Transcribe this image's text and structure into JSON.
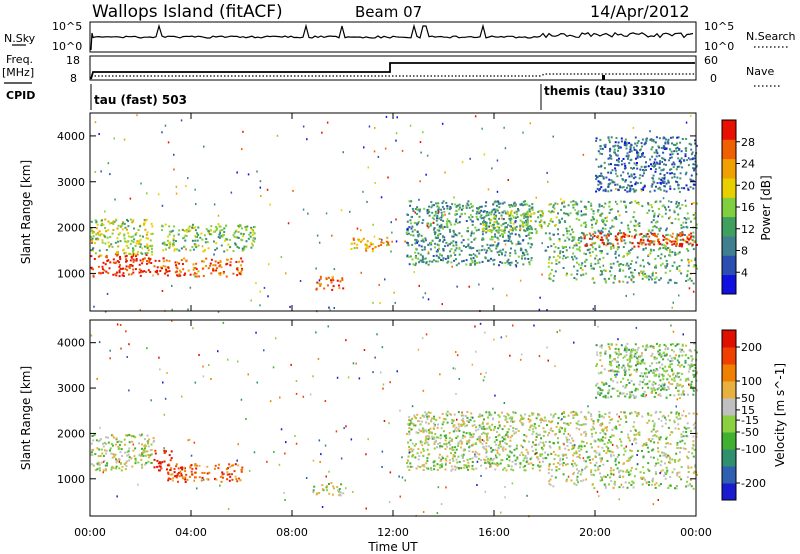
{
  "header": {
    "title": "Wallops Island (fitACF)",
    "beam": "Beam 07",
    "date": "14/Apr/2012"
  },
  "strip": {
    "nsky_label": "N.Sky",
    "nsky_ticks": [
      "10^5",
      "10^0"
    ],
    "nsearch_label": "N.Search",
    "nsearch_ticks": [
      "10^5",
      "10^0"
    ],
    "freq_label": "Freq.",
    "freq_unit": "[MHz]",
    "freq_ticks": [
      "18",
      "8"
    ],
    "nave_label": "Nave",
    "nave_ticks": [
      "60",
      "0"
    ],
    "cpid_label": "CPID",
    "cpid_modes": [
      {
        "name": "tau (fast) 503",
        "start_hour": 0
      },
      {
        "name": "themis (tau) 3310",
        "start_hour": 18
      }
    ]
  },
  "chart_data": [
    {
      "type": "heatmap",
      "quantity": "Power",
      "ylabel": "Slant Range [km]",
      "xlabel": "Time UT",
      "x_ticks": [
        "00:00",
        "04:00",
        "08:00",
        "12:00",
        "16:00",
        "20:00",
        "00:00"
      ],
      "xlim_hours": [
        0,
        24
      ],
      "y_ticks": [
        1000,
        2000,
        3000,
        4000
      ],
      "ylim": [
        180,
        4500
      ],
      "colorbar": {
        "label": "Power [dB]",
        "ticks": [
          4,
          8,
          12,
          16,
          20,
          24,
          28
        ],
        "range": [
          0,
          32
        ],
        "colors": [
          "#1010e0",
          "#2a4fb0",
          "#3f7f8f",
          "#3f9f5f",
          "#7fcf3f",
          "#e8d000",
          "#f0a000",
          "#f06000",
          "#e81000"
        ]
      },
      "regions": [
        {
          "t0": 0.0,
          "t1": 2.4,
          "r0": 950,
          "r1": 1450,
          "level": 0.95
        },
        {
          "t0": 0.0,
          "t1": 2.5,
          "r0": 1400,
          "r1": 2200,
          "level": 0.55
        },
        {
          "t0": 2.5,
          "t1": 6.0,
          "r0": 950,
          "r1": 1350,
          "level": 0.85
        },
        {
          "t0": 2.8,
          "t1": 6.5,
          "r0": 1500,
          "r1": 2100,
          "level": 0.45
        },
        {
          "t0": 8.8,
          "t1": 10.0,
          "r0": 650,
          "r1": 950,
          "level": 0.8
        },
        {
          "t0": 10.3,
          "t1": 11.8,
          "r0": 1500,
          "r1": 1800,
          "level": 0.7
        },
        {
          "t0": 12.5,
          "t1": 17.5,
          "r0": 1200,
          "r1": 2600,
          "level": 0.35
        },
        {
          "t0": 15.5,
          "t1": 18.0,
          "r0": 1900,
          "r1": 2400,
          "level": 0.5
        },
        {
          "t0": 18.0,
          "t1": 24.0,
          "r0": 800,
          "r1": 2600,
          "level": 0.4
        },
        {
          "t0": 19.5,
          "t1": 24.0,
          "r0": 1600,
          "r1": 1900,
          "level": 0.9
        },
        {
          "t0": 20.0,
          "t1": 24.0,
          "r0": 2800,
          "r1": 4000,
          "level": 0.25
        }
      ]
    },
    {
      "type": "heatmap",
      "quantity": "Velocity",
      "ylabel": "Slant Range [km]",
      "xlabel": "Time UT",
      "x_ticks": [
        "00:00",
        "04:00",
        "08:00",
        "12:00",
        "16:00",
        "20:00",
        "00:00"
      ],
      "xlim_hours": [
        0,
        24
      ],
      "y_ticks": [
        1000,
        2000,
        3000,
        4000
      ],
      "ylim": [
        180,
        4500
      ],
      "colorbar": {
        "label": "Velocity [m s^-1]",
        "ticks": [
          200,
          100,
          50,
          15,
          -15,
          -50,
          -100,
          -200
        ],
        "range": [
          -250,
          250
        ],
        "colors": [
          "#1a1acf",
          "#2e5fb0",
          "#2f8f6f",
          "#40b030",
          "#8ad040",
          "#c0c0c0",
          "#e8b040",
          "#f08000",
          "#f04000",
          "#e01000"
        ]
      },
      "regions": [
        {
          "t0": 0.0,
          "t1": 2.5,
          "r0": 1200,
          "r1": 2000,
          "level": 0.5
        },
        {
          "t0": 2.5,
          "t1": 3.2,
          "r0": 1200,
          "r1": 1650,
          "level": 0.98
        },
        {
          "t0": 3.0,
          "t1": 6.0,
          "r0": 950,
          "r1": 1350,
          "level": 0.82
        },
        {
          "t0": 8.8,
          "t1": 10.0,
          "r0": 650,
          "r1": 950,
          "level": 0.5
        },
        {
          "t0": 12.5,
          "t1": 18.0,
          "r0": 1200,
          "r1": 2500,
          "level": 0.5
        },
        {
          "t0": 18.0,
          "t1": 24.0,
          "r0": 800,
          "r1": 2500,
          "level": 0.5
        },
        {
          "t0": 20.0,
          "t1": 24.0,
          "r0": 2800,
          "r1": 4000,
          "level": 0.45
        }
      ]
    }
  ]
}
